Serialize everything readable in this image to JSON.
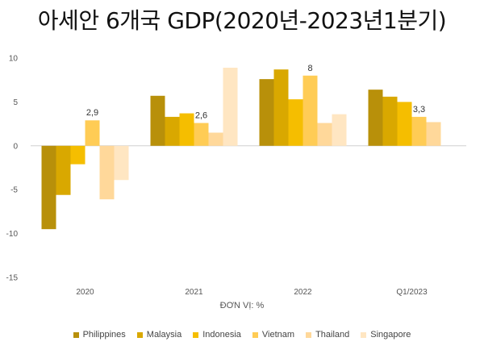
{
  "chart_data": {
    "type": "bar",
    "title": "아세안 6개국 GDP(2020년-2023년1분기)",
    "unit_label": "ĐƠN VỊ: %",
    "categories": [
      "2020",
      "2021",
      "2022",
      "Q1/2023"
    ],
    "ylim": [
      -15,
      10
    ],
    "yticks": [
      10,
      5,
      0,
      -5,
      -10,
      -15
    ],
    "grid": false,
    "legend_position": "bottom",
    "series": [
      {
        "name": "Philippines",
        "color": "#B8900A",
        "values": [
          -9.5,
          5.7,
          7.6,
          6.4
        ]
      },
      {
        "name": "Malaysia",
        "color": "#D9A800",
        "values": [
          -5.6,
          3.3,
          8.7,
          5.6
        ]
      },
      {
        "name": "Indonesia",
        "color": "#F5BE00",
        "values": [
          -2.1,
          3.7,
          5.3,
          5.0
        ]
      },
      {
        "name": "Vietnam",
        "color": "#FFCC55",
        "values": [
          2.9,
          2.6,
          8.0,
          3.3
        ]
      },
      {
        "name": "Thailand",
        "color": "#FFD89A",
        "values": [
          -6.1,
          1.5,
          2.6,
          2.7
        ]
      },
      {
        "name": "Singapore",
        "color": "#FFE6C2",
        "values": [
          -3.9,
          8.9,
          3.6,
          null
        ]
      }
    ],
    "data_labels": [
      {
        "series": "Vietnam",
        "category": "2020",
        "text": "2,9"
      },
      {
        "series": "Vietnam",
        "category": "2021",
        "text": "2,6"
      },
      {
        "series": "Vietnam",
        "category": "2022",
        "text": "8"
      },
      {
        "series": "Vietnam",
        "category": "Q1/2023",
        "text": "3,3"
      }
    ]
  }
}
